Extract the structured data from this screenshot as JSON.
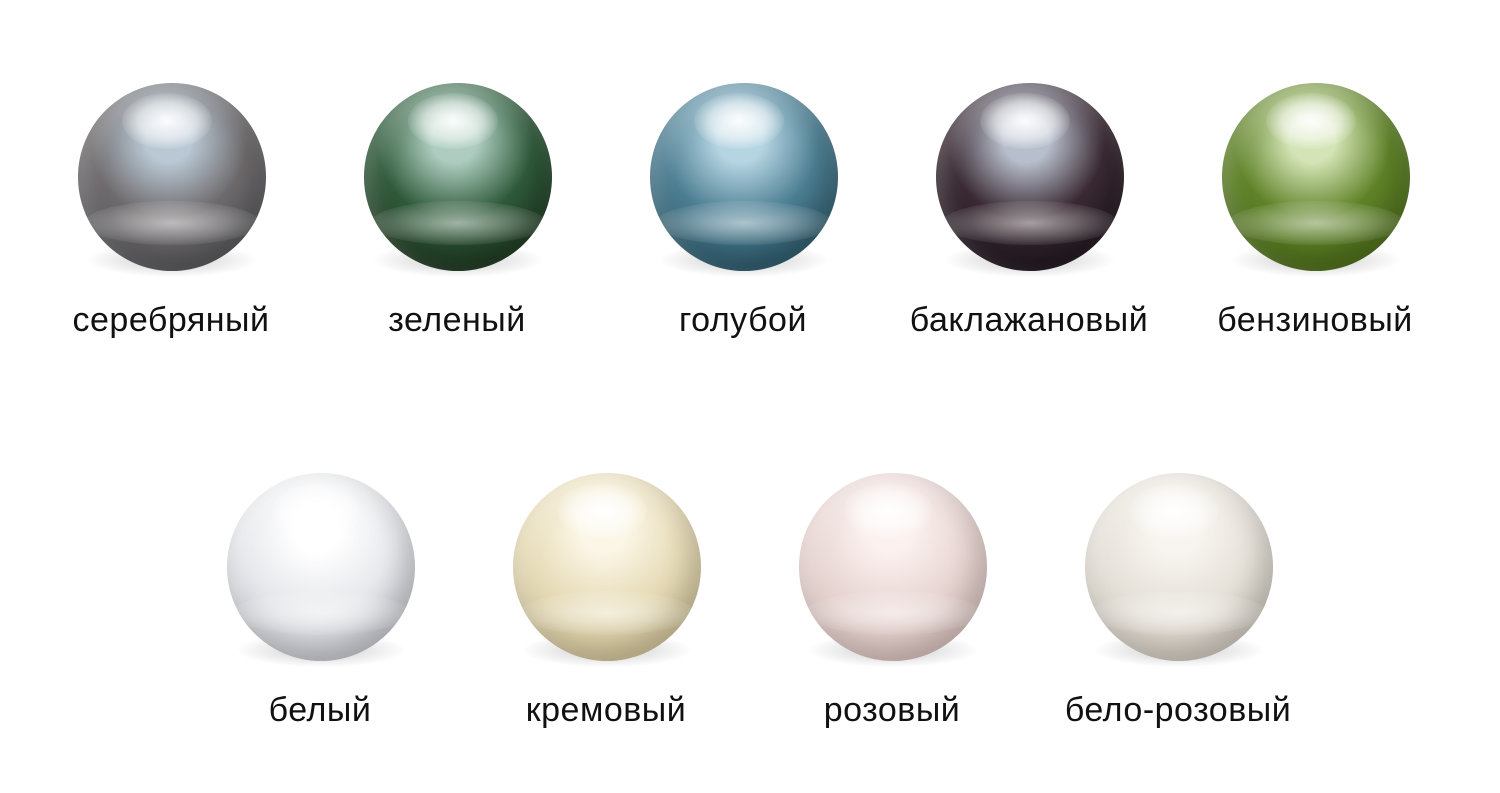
{
  "pearls": [
    {
      "label": "серебряный",
      "color_core": "#6e6a6c",
      "color_rim": "#57575b",
      "color_tint": "#b9c8d4"
    },
    {
      "label": "зеленый",
      "color_core": "#2f5a3a",
      "color_rim": "#1f3a22",
      "color_tint": "#aecdc0"
    },
    {
      "label": "голубой",
      "color_core": "#4c7e92",
      "color_rim": "#2e5b6c",
      "color_tint": "#b6d5e2"
    },
    {
      "label": "баклажановый",
      "color_core": "#3a2a33",
      "color_rim": "#221820",
      "color_tint": "#b8bfcc"
    },
    {
      "label": "бензиновый",
      "color_core": "#5f8228",
      "color_rim": "#4d6e1a",
      "color_tint": "#d4e4b6"
    },
    {
      "label": "белый",
      "color_core": "#e7e8ec",
      "color_rim": "#c8c9cf",
      "color_tint": "#ffffff"
    },
    {
      "label": "кремовый",
      "color_core": "#e7dcb8",
      "color_rim": "#d2c49a",
      "color_tint": "#fbf6e6"
    },
    {
      "label": "розовый",
      "color_core": "#e8d6d3",
      "color_rim": "#d8c1bd",
      "color_tint": "#fbf1ef"
    },
    {
      "label": "бело-розовый",
      "color_core": "#e6e1d9",
      "color_rim": "#d0c9bf",
      "color_tint": "#f8f5f0"
    }
  ]
}
